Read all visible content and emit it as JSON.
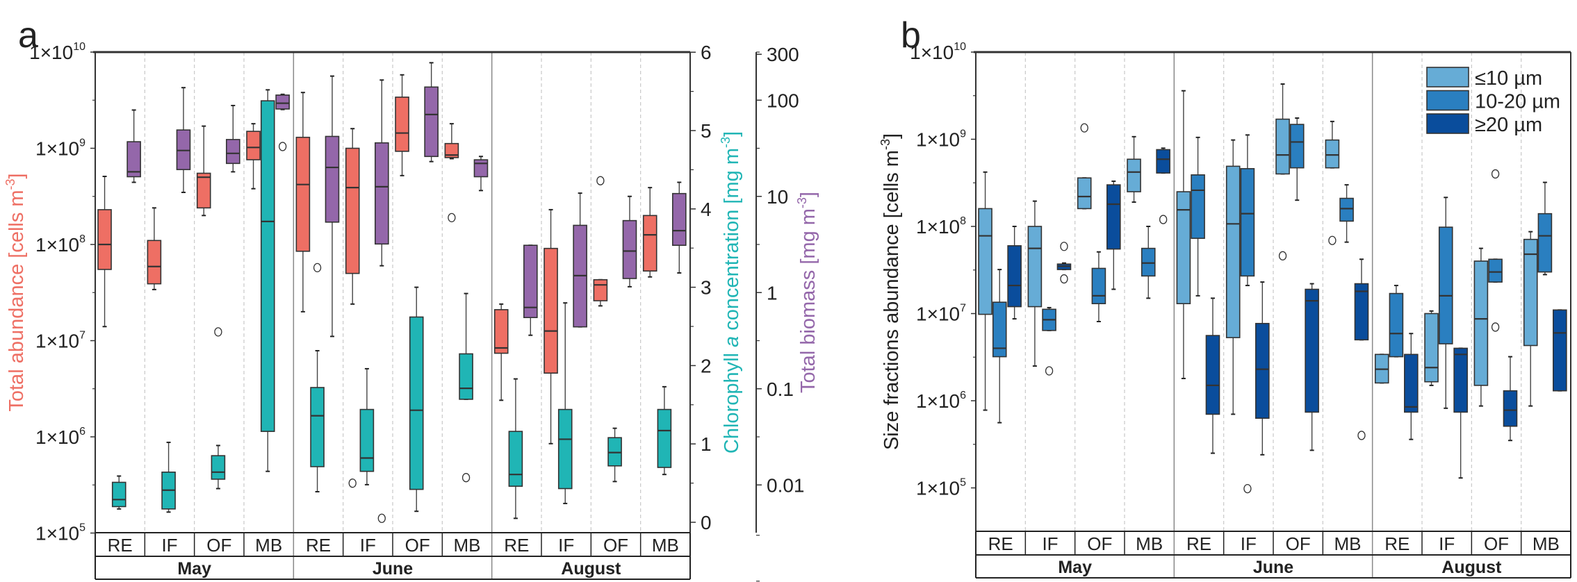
{
  "chart_data": [
    {
      "type": "box",
      "panel_label": "a",
      "months": [
        "May",
        "June",
        "August"
      ],
      "sites": [
        "RE",
        "IF",
        "OF",
        "MB"
      ],
      "y_left": {
        "label": "Total abundance [cells m",
        "label_sup": "-3",
        "label_end": "]",
        "scale": "log",
        "range": [
          100000,
          10000000000
        ],
        "ticks": [
          {
            "value": 10000000000.0,
            "base": "1×10",
            "exp": "10"
          },
          {
            "value": 1000000000.0,
            "base": "1×10",
            "exp": "9"
          },
          {
            "value": 100000000.0,
            "base": "1×10",
            "exp": "8"
          },
          {
            "value": 10000000.0,
            "base": "1×10",
            "exp": "7"
          },
          {
            "value": 1000000.0,
            "base": "1×10",
            "exp": "6"
          },
          {
            "value": 100000.0,
            "base": "1×10",
            "exp": "5"
          }
        ],
        "color": "#ee6f64"
      },
      "y_chl": {
        "label_pre": "Chlorophyll ",
        "label_italic": "a",
        "label": " concentration [mg m",
        "label_sup": "-3",
        "label_end": "]",
        "scale": "linear",
        "range": [
          0,
          6
        ],
        "ticks": [
          {
            "value": 0,
            "text": "0"
          },
          {
            "value": 1,
            "text": "1"
          },
          {
            "value": 2,
            "text": "2"
          },
          {
            "value": 3,
            "text": "3"
          },
          {
            "value": 4,
            "text": "4"
          },
          {
            "value": 5,
            "text": "5"
          },
          {
            "value": 6,
            "text": "6"
          }
        ],
        "color": "#20b5b5"
      },
      "y_bio": {
        "label": "Total biomass [mg m",
        "label_sup": "-3",
        "label_end": "]",
        "scale": "log",
        "ticks": [
          {
            "value": 300,
            "text": "300"
          },
          {
            "value": 100,
            "text": "100"
          },
          {
            "value": 10,
            "text": "10"
          },
          {
            "value": 1,
            "text": "1"
          },
          {
            "value": 0.1,
            "text": "0.1"
          },
          {
            "value": 0.01,
            "text": "0.01"
          }
        ],
        "color": "#9467aa"
      },
      "series": [
        {
          "axis": "left",
          "color": "#ee6f64",
          "boxes": [
            [
              14000000.0,
              55000000.0,
              100000000.0,
              230000000.0,
              510000000.0
            ],
            [
              34000000.0,
              39000000.0,
              59000000.0,
              110000000.0,
              240000000.0
            ],
            [
              200000000.0,
              240000000.0,
              500000000.0,
              550000000.0,
              1700000000.0
            ],
            [
              380000000.0,
              760000000.0,
              1020000000.0,
              1500000000.0,
              1800000000.0
            ],
            [
              20000000.0,
              85000000.0,
              420000000.0,
              1300000000.0,
              3800000000.0
            ],
            [
              24000000.0,
              50000000.0,
              390000000.0,
              1000000000.0,
              1600000000.0
            ],
            [
              520000000.0,
              930000000.0,
              1440000000.0,
              3400000000.0,
              5800000000.0
            ],
            [
              780000000.0,
              800000000.0,
              850000000.0,
              1120000000.0,
              1800000000.0
            ],
            [
              2400000.0,
              7400000.0,
              8400000.0,
              21000000.0,
              24000000.0
            ],
            [
              850000.0,
              4600000.0,
              12600000.0,
              91000000.0,
              230000000.0
            ],
            [
              23000000.0,
              26000000.0,
              38000000.0,
              43000000.0,
              43000000.0
            ],
            [
              46000000.0,
              53000000.0,
              126000000.0,
              200000000.0,
              390000000.0
            ]
          ],
          "outliers": [
            [],
            [],
            [],
            [],
            [],
            [
              330000.0
            ],
            [],
            [
              190000000.0
            ],
            [],
            [],
            [
              460000000.0
            ],
            []
          ]
        },
        {
          "axis": "chl",
          "color": "#20b5b5",
          "boxes": [
            [
              0.17,
              0.2,
              0.29,
              0.51,
              0.59
            ],
            [
              0.13,
              0.17,
              0.41,
              0.64,
              1.02
            ],
            [
              0.43,
              0.55,
              0.64,
              0.85,
              0.98
            ],
            [
              0.65,
              1.16,
              3.84,
              5.38,
              5.52
            ],
            [
              0.39,
              0.71,
              1.36,
              1.72,
              2.19
            ],
            [
              0.48,
              0.65,
              0.82,
              1.44,
              1.96
            ],
            [
              0.14,
              0.42,
              1.43,
              2.62,
              3.0
            ],
            [
              1.57,
              1.57,
              1.71,
              2.15,
              2.92
            ],
            [
              0.05,
              0.46,
              0.61,
              1.16,
              1.83
            ],
            [
              0.24,
              0.43,
              1.06,
              1.44,
              2.8
            ],
            [
              0.52,
              0.72,
              0.89,
              1.08,
              1.2
            ],
            [
              0.61,
              0.7,
              1.17,
              1.44,
              1.73
            ]
          ],
          "outliers": [
            [],
            [],
            [
              2.43
            ],
            [],
            [
              3.25
            ],
            [],
            [],
            [
              0.57
            ],
            [],
            [],
            [],
            []
          ]
        },
        {
          "axis": "bio",
          "color": "#9467aa",
          "boxes": [
            [
              14,
              16,
              18,
              37,
              79
            ],
            [
              11,
              19,
              30,
              49,
              135
            ],
            [
              18,
              22,
              28,
              39,
              88
            ],
            [
              80,
              81,
              93,
              113,
              115
            ],
            [
              0.35,
              5.4,
              20,
              42,
              178
            ],
            [
              1.9,
              3.2,
              12.6,
              36,
              162
            ],
            [
              23,
              26,
              71,
              137,
              245
            ],
            [
              11.5,
              16,
              22,
              24,
              26
            ],
            [
              0.36,
              0.55,
              0.7,
              3.1,
              3.1
            ],
            [
              0.44,
              0.44,
              1.5,
              5.0,
              10.8
            ],
            [
              1.15,
              1.4,
              2.7,
              5.6,
              10
            ],
            [
              1.6,
              3.1,
              4.4,
              10.7,
              14
            ]
          ],
          "outliers": [
            [],
            [],
            [],
            [
              33
            ],
            [],
            [
              0.0045
            ],
            [],
            [],
            [],
            [],
            [],
            []
          ]
        }
      ]
    },
    {
      "type": "box",
      "panel_label": "b",
      "months": [
        "May",
        "June",
        "August"
      ],
      "sites": [
        "RE",
        "IF",
        "OF",
        "MB"
      ],
      "y_left": {
        "label": "Size fractions abundance [cells m",
        "label_sup": "-3",
        "label_end": "]",
        "scale": "log",
        "range": [
          31623,
          10000000000
        ],
        "ticks": [
          {
            "value": 10000000000.0,
            "base": "1×10",
            "exp": "10"
          },
          {
            "value": 1000000000.0,
            "base": "1×10",
            "exp": "9"
          },
          {
            "value": 100000000.0,
            "base": "1×10",
            "exp": "8"
          },
          {
            "value": 10000000.0,
            "base": "1×10",
            "exp": "7"
          },
          {
            "value": 1000000.0,
            "base": "1×10",
            "exp": "6"
          },
          {
            "value": 100000.0,
            "base": "1×10",
            "exp": "5"
          }
        ]
      },
      "legend_position": "top-right",
      "series": [
        {
          "name": "≤10 µm",
          "color": "#66acd6",
          "boxes": [
            [
              780000.0,
              9800000.0,
              78000000.0,
              160000000.0,
              420000000.0
            ],
            [
              2500000.0,
              12000000.0,
              56000000.0,
              100000000.0,
              195000000.0
            ],
            [
              160000000.0,
              160000000.0,
              220000000.0,
              360000000.0,
              360000000.0
            ],
            [
              190000000.0,
              250000000.0,
              420000000.0,
              590000000.0,
              1070000000.0
            ],
            [
              1800000.0,
              13000000.0,
              155000000.0,
              250000000.0,
              3600000000.0
            ],
            [
              700000.0,
              5300000.0,
              107000000.0,
              490000000.0,
              980000000.0
            ],
            [
              400000000.0,
              400000000.0,
              660000000.0,
              1700000000.0,
              4300000000.0
            ],
            [
              470000000.0,
              470000000.0,
              660000000.0,
              980000000.0,
              1600000000.0
            ],
            [
              1600000.0,
              1600000.0,
              2300000.0,
              3400000.0,
              3400000.0
            ],
            [
              1500000.0,
              1650000.0,
              2400000.0,
              10000000.0,
              10700000.0
            ],
            [
              870000.0,
              1500000.0,
              8700000.0,
              40000000.0,
              56000000.0
            ],
            [
              870000.0,
              4300000.0,
              48000000.0,
              71000000.0,
              87000000.0
            ]
          ],
          "outliers": [
            [],
            [],
            [
              1350000000.0
            ],
            [],
            [],
            [],
            [
              46000000.0
            ],
            [
              69000000.0
            ],
            [],
            [],
            [],
            []
          ]
        },
        {
          "name": "10-20 µm",
          "color": "#2a7fc0",
          "boxes": [
            [
              560000.0,
              3200000.0,
              4000000.0,
              13500000.0,
              32000000.0
            ],
            [
              6400000.0,
              6400000.0,
              8500000.0,
              11200000.0,
              11700000.0
            ],
            [
              8100000.0,
              13000000.0,
              16000000.0,
              33000000.0,
              51000000.0
            ],
            [
              15000000.0,
              27000000.0,
              38000000.0,
              56000000.0,
              100000000.0
            ],
            [
              16000000.0,
              73000000.0,
              260000000.0,
              390000000.0,
              1050000000.0
            ],
            [
              21000000.0,
              27000000.0,
              140000000.0,
              460000000.0,
              1120000000.0
            ],
            [
              200000000.0,
              470000000.0,
              930000000.0,
              1480000000.0,
              1750000000.0
            ],
            [
              66000000.0,
              115000000.0,
              160000000.0,
              210000000.0,
              300000000.0
            ],
            [
              3200000.0,
              3200000.0,
              5900000.0,
              17000000.0,
              21000000.0
            ],
            [
              820000.0,
              4500000.0,
              16000000.0,
              98000000.0,
              215000000.0
            ],
            [
              23000000.0,
              23000000.0,
              30000000.0,
              42000000.0,
              42000000.0
            ],
            [
              28000000.0,
              30000000.0,
              78000000.0,
              140000000.0,
              320000000.0
            ]
          ],
          "outliers": [
            [],
            [
              2200000.0
            ],
            [],
            [],
            [],
            [
              98000.0
            ],
            [],
            [],
            [],
            [],
            [
              400000000.0,
              7000000.0
            ],
            []
          ]
        },
        {
          "name": "≥20 µm",
          "color": "#0a4d9c",
          "boxes": [
            [
              8700000.0,
              12000000.0,
              21000000.0,
              60000000.0,
              100000000.0
            ],
            [
              32000000.0,
              32000000.0,
              35000000.0,
              37000000.0,
              38000000.0
            ],
            [
              19000000.0,
              55000000.0,
              180000000.0,
              300000000.0,
              330000000.0
            ],
            [
              410000000.0,
              410000000.0,
              590000000.0,
              760000000.0,
              790000000.0
            ],
            [
              250000.0,
              700000.0,
              1500000.0,
              5600000.0,
              15000000.0
            ],
            [
              240000.0,
              630000.0,
              2300000.0,
              7700000.0,
              23000000.0
            ],
            [
              270000.0,
              740000.0,
              14000000.0,
              19000000.0,
              22000000.0
            ],
            [
              5000000.0,
              5000000.0,
              18000000.0,
              22000000.0,
              42000000.0
            ],
            [
              360000.0,
              740000.0,
              850000.0,
              3400000.0,
              5900000.0
            ],
            [
              130000.0,
              740000.0,
              3400000.0,
              4000000.0,
              4000000.0
            ],
            [
              350000.0,
              510000.0,
              780000.0,
              1300000.0,
              3200000.0
            ],
            [
              1300000.0,
              1300000.0,
              6000000.0,
              11000000.0,
              11000000.0
            ]
          ],
          "outliers": [
            [],
            [
              59000000.0,
              25000000.0
            ],
            [],
            [
              120000000.0
            ],
            [],
            [],
            [],
            [
              400000.0
            ],
            [],
            [],
            [],
            []
          ]
        }
      ]
    }
  ]
}
